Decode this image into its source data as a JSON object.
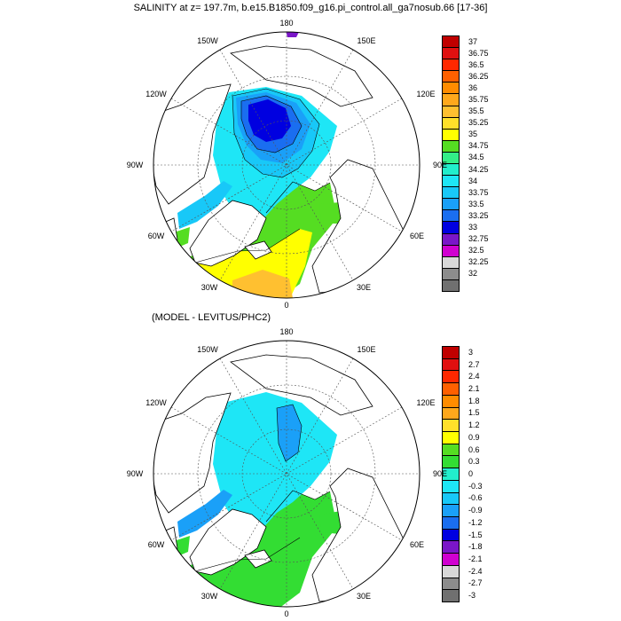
{
  "panels": [
    {
      "title": "SALINITY at z= 197.7m, b.e15.B1850.f09_g16.pi_control.all_ga7nosub.66 [17-36]",
      "longitude_labels": [
        "180",
        "150E",
        "120E",
        "90E",
        "60E",
        "30E",
        "0",
        "30W",
        "60W",
        "90W",
        "120W",
        "150W"
      ],
      "colorbar": {
        "levels": [
          "37",
          "36.75",
          "36.5",
          "36.25",
          "36",
          "35.75",
          "35.5",
          "35.25",
          "35",
          "34.75",
          "34.5",
          "34.25",
          "34",
          "33.75",
          "33.5",
          "33.25",
          "33",
          "32.75",
          "32.5",
          "32.25",
          "32"
        ],
        "colors": [
          "#c00000",
          "#e01010",
          "#ff2800",
          "#ff6000",
          "#ff8c00",
          "#ffa81c",
          "#ffc030",
          "#ffe02a",
          "#ffff00",
          "#55dd22",
          "#33ee88",
          "#22eecc",
          "#1ee6f6",
          "#18c8f8",
          "#1aa0f8",
          "#1a6ef0",
          "#0000e0",
          "#7a16c8",
          "#d000d0",
          "#d8d8d8",
          "#8c8c8c",
          "#707070"
        ]
      }
    },
    {
      "title": "(MODEL - LEVITUS/PHC2)",
      "longitude_labels": [
        "180",
        "150E",
        "120E",
        "90E",
        "60E",
        "30E",
        "0",
        "30W",
        "60W",
        "90W",
        "120W",
        "150W"
      ],
      "colorbar": {
        "levels": [
          "3",
          "2.7",
          "2.4",
          "2.1",
          "1.8",
          "1.5",
          "1.2",
          "0.9",
          "0.6",
          "0.3",
          "0",
          "-0.3",
          "-0.6",
          "-0.9",
          "-1.2",
          "-1.5",
          "-1.8",
          "-2.1",
          "-2.4",
          "-2.7",
          "-3"
        ],
        "colors": [
          "#c00000",
          "#e01010",
          "#ff2800",
          "#ff6000",
          "#ff8c00",
          "#ffa81c",
          "#ffe02a",
          "#ffff00",
          "#55dd22",
          "#33dd33",
          "#22eecc",
          "#1ee6f6",
          "#18c8f8",
          "#1aa0f8",
          "#1a6ef0",
          "#0000e0",
          "#7a16c8",
          "#d000d0",
          "#d8d8d8",
          "#8c8c8c",
          "#707070"
        ]
      }
    }
  ]
}
